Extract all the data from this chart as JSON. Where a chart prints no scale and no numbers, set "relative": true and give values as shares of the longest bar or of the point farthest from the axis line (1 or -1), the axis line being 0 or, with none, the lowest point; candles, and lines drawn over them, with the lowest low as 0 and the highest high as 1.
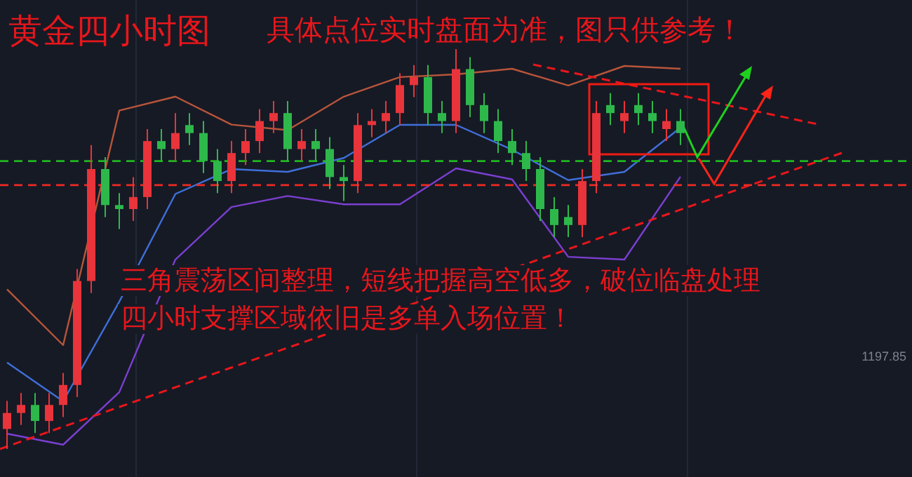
{
  "chart_data": [
    {
      "type": "candlestick",
      "title": "黄金四小时图",
      "subtitle": "具体点位实时盘面为准，图只供参考！",
      "relative": true,
      "tick_labels": false,
      "categories": [
        null,
        null,
        null,
        null,
        null,
        null,
        null,
        null,
        null,
        null,
        null,
        null,
        null,
        null,
        null,
        null,
        null,
        null,
        null,
        null,
        null,
        null,
        null,
        null,
        null,
        null,
        null,
        null,
        null,
        null,
        null,
        null,
        null,
        null,
        null,
        null,
        null,
        null,
        null,
        null,
        null,
        null,
        null,
        null,
        null,
        null,
        null,
        null,
        null
      ],
      "ohlc": [
        [
          0.05,
          0.12,
          0.0,
          0.09
        ],
        [
          0.09,
          0.14,
          0.06,
          0.11
        ],
        [
          0.11,
          0.14,
          0.04,
          0.07
        ],
        [
          0.07,
          0.14,
          0.04,
          0.11
        ],
        [
          0.11,
          0.19,
          0.08,
          0.16
        ],
        [
          0.16,
          0.45,
          0.13,
          0.42
        ],
        [
          0.42,
          0.76,
          0.39,
          0.7
        ],
        [
          0.7,
          0.73,
          0.58,
          0.61
        ],
        [
          0.61,
          0.64,
          0.55,
          0.6
        ],
        [
          0.6,
          0.68,
          0.57,
          0.63
        ],
        [
          0.63,
          0.8,
          0.6,
          0.77
        ],
        [
          0.77,
          0.8,
          0.72,
          0.75
        ],
        [
          0.75,
          0.84,
          0.72,
          0.79
        ],
        [
          0.81,
          0.84,
          0.76,
          0.79
        ],
        [
          0.79,
          0.82,
          0.69,
          0.72
        ],
        [
          0.72,
          0.75,
          0.64,
          0.67
        ],
        [
          0.67,
          0.77,
          0.64,
          0.74
        ],
        [
          0.74,
          0.8,
          0.71,
          0.77
        ],
        [
          0.77,
          0.85,
          0.74,
          0.82
        ],
        [
          0.82,
          0.87,
          0.79,
          0.84
        ],
        [
          0.84,
          0.87,
          0.72,
          0.75
        ],
        [
          0.75,
          0.8,
          0.72,
          0.77
        ],
        [
          0.77,
          0.8,
          0.72,
          0.75
        ],
        [
          0.75,
          0.78,
          0.65,
          0.68
        ],
        [
          0.68,
          0.71,
          0.62,
          0.67
        ],
        [
          0.67,
          0.84,
          0.64,
          0.81
        ],
        [
          0.81,
          0.85,
          0.78,
          0.82
        ],
        [
          0.82,
          0.87,
          0.79,
          0.84
        ],
        [
          0.84,
          0.94,
          0.81,
          0.91
        ],
        [
          0.91,
          0.96,
          0.88,
          0.93
        ],
        [
          0.93,
          0.96,
          0.81,
          0.84
        ],
        [
          0.84,
          0.87,
          0.79,
          0.82
        ],
        [
          0.82,
          1.0,
          0.79,
          0.95
        ],
        [
          0.95,
          0.98,
          0.83,
          0.86
        ],
        [
          0.86,
          0.89,
          0.79,
          0.82
        ],
        [
          0.82,
          0.85,
          0.74,
          0.77
        ],
        [
          0.77,
          0.8,
          0.71,
          0.74
        ],
        [
          0.74,
          0.77,
          0.67,
          0.7
        ],
        [
          0.7,
          0.73,
          0.57,
          0.6
        ],
        [
          0.6,
          0.63,
          0.53,
          0.56
        ],
        [
          0.58,
          0.61,
          0.53,
          0.56
        ],
        [
          0.56,
          0.7,
          0.53,
          0.67
        ],
        [
          0.67,
          0.87,
          0.64,
          0.84
        ],
        [
          0.86,
          0.89,
          0.81,
          0.84
        ],
        [
          0.82,
          0.87,
          0.79,
          0.84
        ],
        [
          0.86,
          0.89,
          0.81,
          0.84
        ],
        [
          0.84,
          0.87,
          0.79,
          0.82
        ],
        [
          0.8,
          0.85,
          0.77,
          0.82
        ],
        [
          0.82,
          0.85,
          0.76,
          0.79
        ]
      ],
      "colors": [
        "#e8343a",
        "#e8343a",
        "#2eb84b",
        "#e8343a",
        "#e8343a",
        "#e8343a",
        "#e8343a",
        "#2eb84b",
        "#2eb84b",
        "#e8343a",
        "#e8343a",
        "#2eb84b",
        "#e8343a",
        "#2eb84b",
        "#2eb84b",
        "#2eb84b",
        "#e8343a",
        "#e8343a",
        "#e8343a",
        "#e8343a",
        "#2eb84b",
        "#e8343a",
        "#2eb84b",
        "#2eb84b",
        "#2eb84b",
        "#e8343a",
        "#e8343a",
        "#e8343a",
        "#e8343a",
        "#e8343a",
        "#2eb84b",
        "#2eb84b",
        "#e8343a",
        "#2eb84b",
        "#2eb84b",
        "#2eb84b",
        "#2eb84b",
        "#2eb84b",
        "#2eb84b",
        "#2eb84b",
        "#2eb84b",
        "#e8343a",
        "#e8343a",
        "#2eb84b",
        "#e8343a",
        "#2eb84b",
        "#2eb84b",
        "#e8343a",
        "#2eb84b"
      ],
      "ref_lines": [
        {
          "axis": "y",
          "value": 0.72,
          "color": "#1fb81f",
          "line_style": "dashed"
        },
        {
          "axis": "y",
          "value": 0.66,
          "color": "#ee2a22",
          "line_style": "dashed"
        }
      ],
      "annotations": [
        "三角震荡区间整理，短线把握高空低多，破位临盘处理",
        "四小时支撑区域依旧是多单入场位置！",
        "1197.85"
      ]
    },
    {
      "type": "line",
      "relative": true,
      "tick_labels": false,
      "categories": [
        null,
        null,
        null,
        null,
        null,
        null,
        null,
        null,
        null,
        null,
        null,
        null,
        null
      ],
      "series": [
        {
          "color": "#b8553a",
          "values": [
            0.2,
            0,
            0.84,
            0.89,
            0.79,
            0.77,
            0.89,
            0.96,
            0.97,
            0.99,
            0.93,
            1.0,
            0.99
          ]
        }
      ]
    },
    {
      "type": "line",
      "relative": true,
      "tick_labels": false,
      "categories": [
        null,
        null,
        null,
        null,
        null,
        null,
        null,
        null,
        null,
        null,
        null,
        null,
        null
      ],
      "series": [
        {
          "color": "#3f6fd8",
          "values": [
            0.14,
            0,
            0.36,
            0.75,
            0.84,
            0.83,
            0.88,
            1.0,
            1.0,
            0.91,
            0.8,
            0.83,
            0.99
          ]
        }
      ]
    },
    {
      "type": "line",
      "relative": true,
      "tick_labels": false,
      "categories": [
        null,
        null,
        null,
        null,
        null,
        null,
        null,
        null,
        null,
        null,
        null,
        null,
        null
      ],
      "series": [
        {
          "color": "#7b3fd0",
          "values": [
            0.04,
            0,
            0.19,
            0.67,
            0.86,
            0.9,
            0.87,
            0.87,
            1.0,
            0.96,
            0.68,
            0.67,
            0.97
          ]
        }
      ]
    },
    {
      "type": "line",
      "relative": true,
      "tick_labels": false,
      "line_style": "dashed",
      "categories": [
        null,
        null
      ],
      "series": [
        {
          "color": "#e8161b",
          "values": [
            0,
            1
          ]
        }
      ]
    },
    {
      "type": "line",
      "relative": true,
      "tick_labels": false,
      "line_style": "dashed",
      "categories": [
        null,
        null
      ],
      "series": [
        {
          "color": "#e8161b",
          "values": [
            1,
            0
          ]
        }
      ]
    }
  ]
}
